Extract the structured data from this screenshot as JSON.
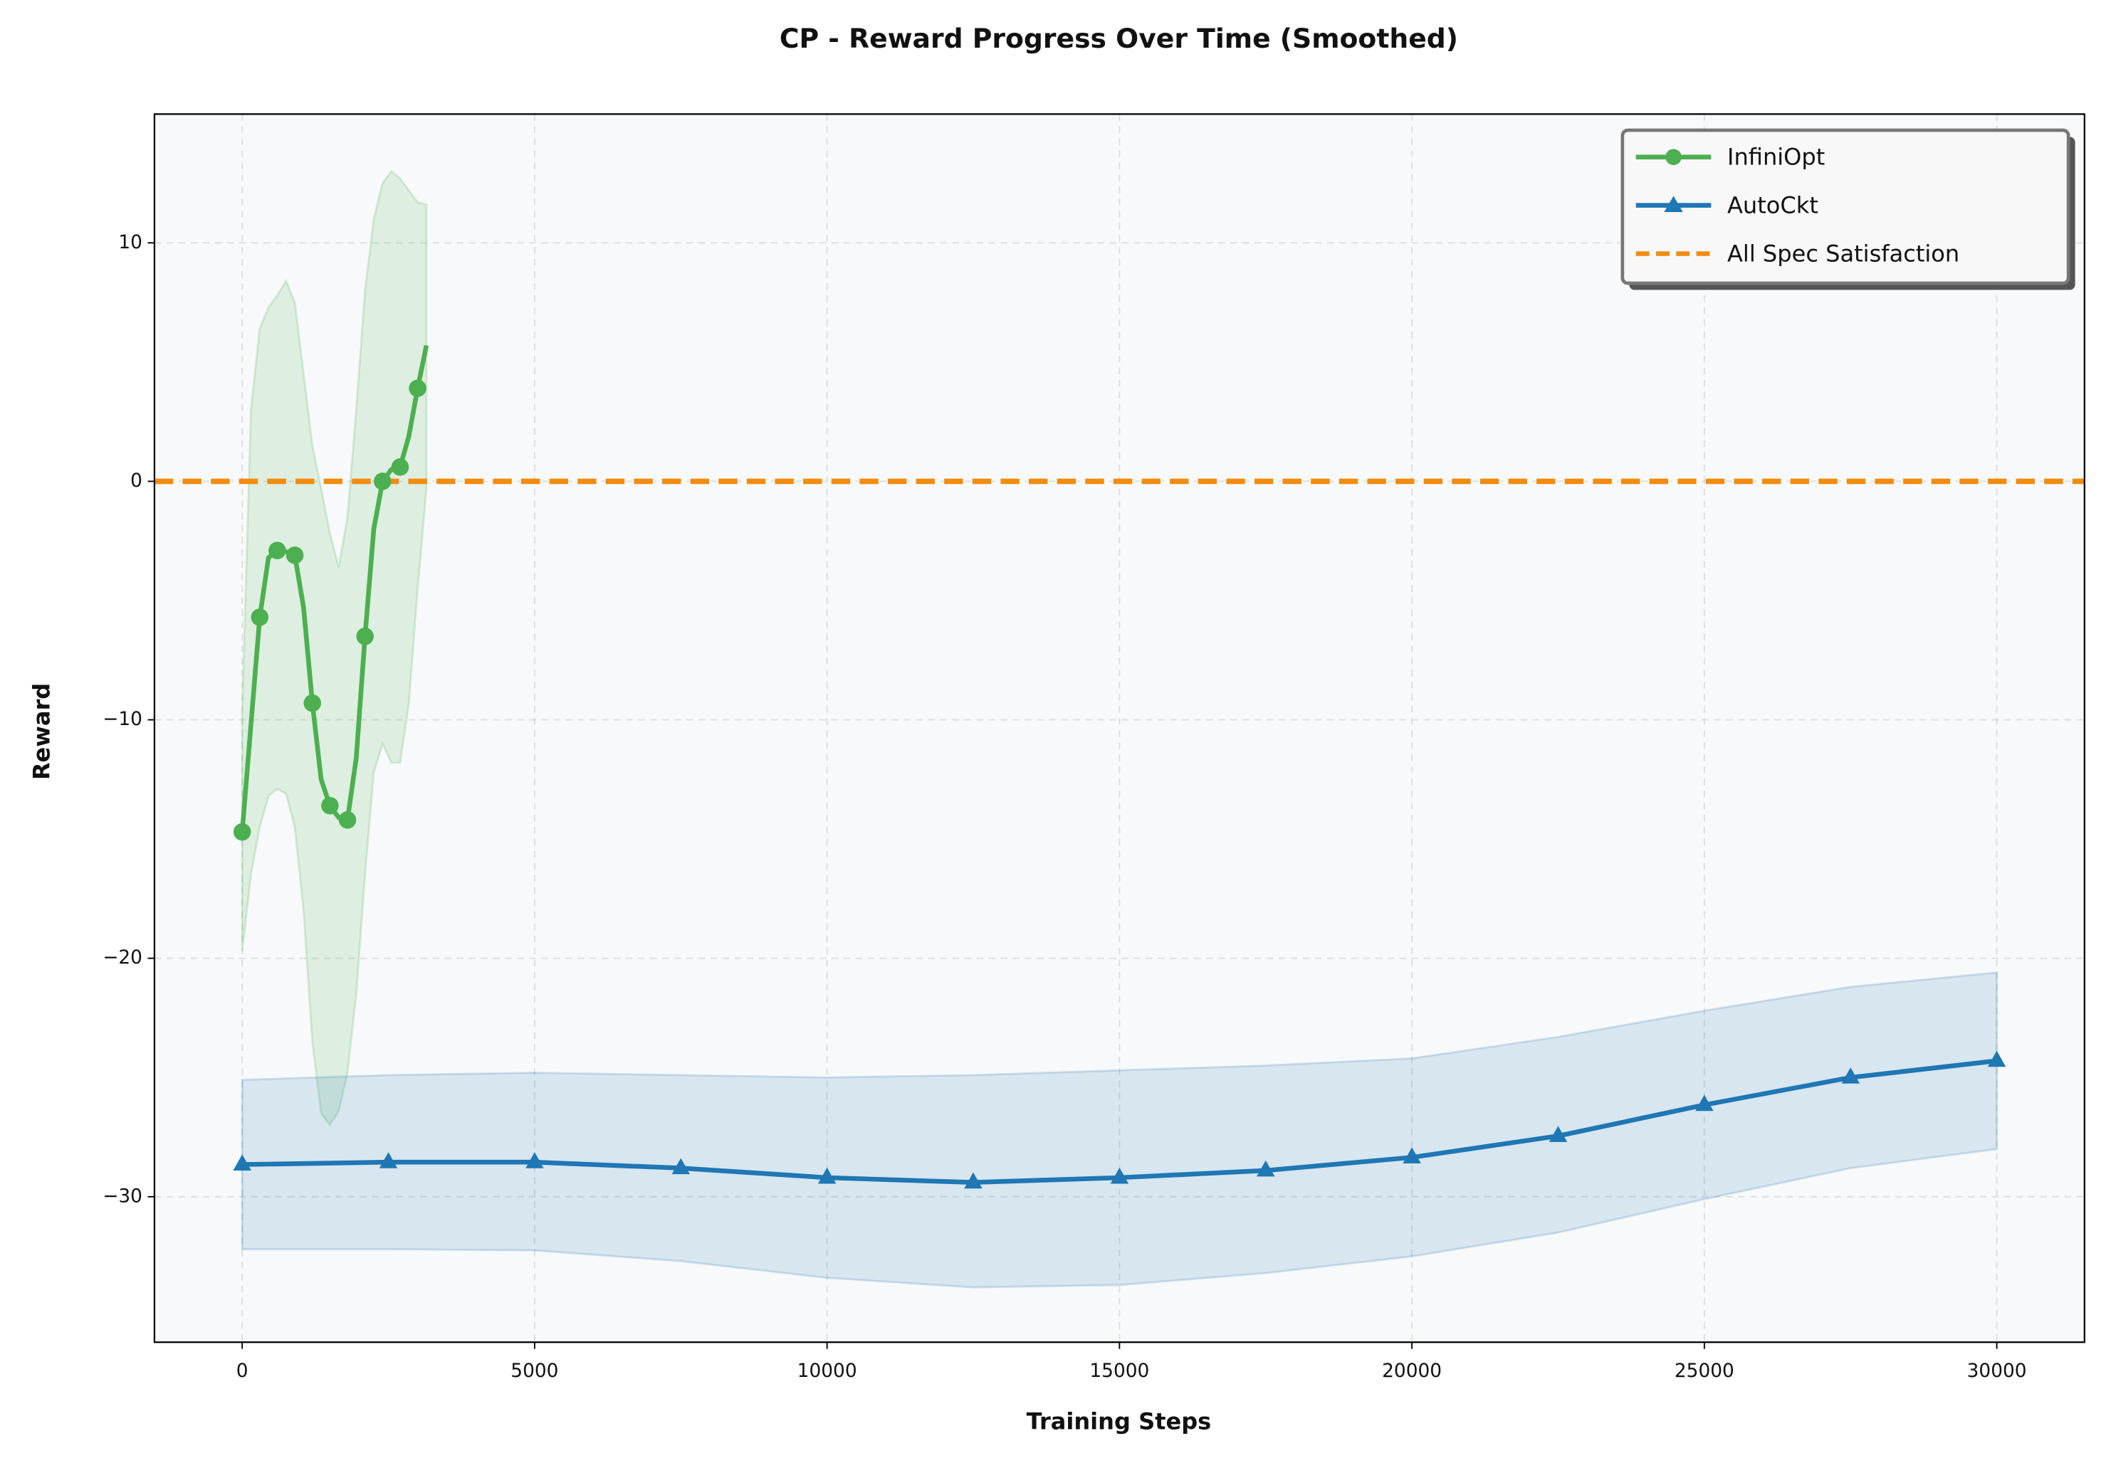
{
  "chart_data": {
    "type": "line",
    "title": "CP - Reward Progress Over Time (Smoothed)",
    "x_label": "Training Steps",
    "y_label": "Reward",
    "xlim": [
      -1500,
      31500
    ],
    "ylim": [
      -36.1,
      15.4
    ],
    "xticks": [
      0,
      5000,
      10000,
      15000,
      20000,
      25000,
      30000
    ],
    "yticks": [
      {
        "value": -30,
        "label": "−30"
      },
      {
        "value": -20,
        "label": "−20"
      },
      {
        "value": -10,
        "label": "−10"
      },
      0,
      10
    ],
    "grid": true,
    "legend_position": "upper right",
    "background": "#f8f9fa",
    "series": [
      {
        "name": "InfiniOpt",
        "color": "#4caf50",
        "marker": "circle",
        "markevery": 2,
        "x": [
          0,
          150,
          300,
          450,
          600,
          750,
          900,
          1050,
          1200,
          1350,
          1500,
          1650,
          1800,
          1950,
          2100,
          2250,
          2400,
          2550,
          2700,
          2850,
          3000,
          3150
        ],
        "values": [
          -14.7,
          -10.2,
          -5.7,
          -3.2,
          -2.9,
          -2.95,
          -3.1,
          -5.3,
          -9.3,
          -12.5,
          -13.6,
          -14.1,
          -14.2,
          -11.6,
          -6.5,
          -2.0,
          0.0,
          0.5,
          0.6,
          1.9,
          3.9,
          5.7
        ],
        "band_upper": [
          -9.7,
          3.0,
          6.4,
          7.3,
          7.8,
          8.4,
          7.5,
          4.5,
          1.5,
          -0.3,
          -2.2,
          -3.6,
          -1.5,
          3.0,
          8.0,
          11.0,
          12.5,
          13.0,
          12.7,
          12.2,
          11.7,
          11.6
        ],
        "band_lower": [
          -19.7,
          -16.5,
          -14.5,
          -13.2,
          -12.9,
          -13.1,
          -14.5,
          -18.0,
          -23.5,
          -26.5,
          -27.0,
          -26.4,
          -24.8,
          -21.5,
          -16.5,
          -12.2,
          -11.0,
          -11.8,
          -11.8,
          -9.3,
          -4.5,
          -0.3
        ]
      },
      {
        "name": "AutoCkt",
        "color": "#1f77b4",
        "marker": "triangle",
        "markevery": 1,
        "x": [
          0,
          2500,
          5000,
          7500,
          10000,
          12500,
          15000,
          17500,
          20000,
          22500,
          25000,
          27500,
          30000
        ],
        "values": [
          -28.65,
          -28.55,
          -28.55,
          -28.8,
          -29.2,
          -29.4,
          -29.2,
          -28.9,
          -28.35,
          -27.45,
          -26.15,
          -25.0,
          -24.3
        ],
        "band_upper": [
          -25.1,
          -24.9,
          -24.8,
          -24.9,
          -25.0,
          -24.9,
          -24.7,
          -24.5,
          -24.2,
          -23.3,
          -22.2,
          -21.2,
          -20.6
        ],
        "band_lower": [
          -32.2,
          -32.2,
          -32.25,
          -32.7,
          -33.4,
          -33.8,
          -33.7,
          -33.2,
          -32.5,
          -31.5,
          -30.1,
          -28.8,
          -28.0
        ]
      }
    ],
    "hline": {
      "name": "All Spec Satisfaction",
      "value": 0,
      "color": "#f28c0f"
    }
  }
}
